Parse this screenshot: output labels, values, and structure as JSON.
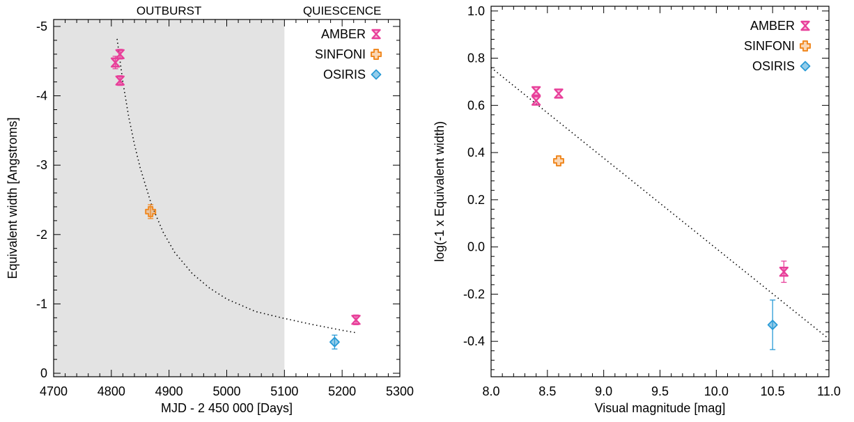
{
  "colors": {
    "amber": "#e8409a",
    "sinfoni": "#f08a24",
    "osiris": "#2a9bd6",
    "shade": "#e3e3e3",
    "fit": "#000000"
  },
  "chart_data": [
    {
      "type": "scatter",
      "xlabel": "MJD - 2 450 000 [Days]",
      "ylabel": "Equivalent width [Angstroms]",
      "xlim": [
        4700,
        5300
      ],
      "ylim": [
        0.05,
        -5.1
      ],
      "y_reversed": true,
      "xticks": [
        4700,
        4800,
        4900,
        5000,
        5100,
        5200,
        5300
      ],
      "yticks": [
        0,
        -1,
        -2,
        -3,
        -4,
        -5
      ],
      "shaded_region": {
        "x": [
          4700,
          5100
        ],
        "label": "OUTBURST"
      },
      "region_labels": [
        {
          "text": "OUTBURST",
          "x": 4900
        },
        {
          "text": "QUIESCENCE",
          "x": 5200
        }
      ],
      "legend": {
        "position": "top-right"
      },
      "series": [
        {
          "name": "AMBER",
          "marker": "hourglass",
          "color": "amber",
          "points": [
            {
              "x": 4807,
              "y": -4.48,
              "err": 0.09
            },
            {
              "x": 4815,
              "y": -4.6,
              "err": 0.07
            },
            {
              "x": 4815,
              "y": -4.22,
              "err": 0.07
            },
            {
              "x": 5224,
              "y": -0.77,
              "err": 0.07
            }
          ]
        },
        {
          "name": "SINFONI",
          "marker": "cross",
          "color": "sinfoni",
          "points": [
            {
              "x": 4868,
              "y": -2.33,
              "err": 0.1
            }
          ]
        },
        {
          "name": "OSIRIS",
          "marker": "diamond",
          "color": "osiris",
          "points": [
            {
              "x": 5187,
              "y": -0.45,
              "err": 0.1
            }
          ]
        }
      ],
      "fit_curve": [
        [
          4810,
          -4.82
        ],
        [
          4820,
          -4.2
        ],
        [
          4830,
          -3.7
        ],
        [
          4840,
          -3.3
        ],
        [
          4850,
          -2.96
        ],
        [
          4870,
          -2.42
        ],
        [
          4890,
          -2.03
        ],
        [
          4910,
          -1.74
        ],
        [
          4940,
          -1.44
        ],
        [
          4970,
          -1.23
        ],
        [
          5000,
          -1.07
        ],
        [
          5050,
          -0.89
        ],
        [
          5100,
          -0.79
        ],
        [
          5150,
          -0.7
        ],
        [
          5200,
          -0.62
        ],
        [
          5227,
          -0.58
        ]
      ]
    },
    {
      "type": "scatter",
      "xlabel": "Visual magnitude [mag]",
      "ylabel": "log(-1 x Equivalent width)",
      "xlim": [
        8.0,
        11.0
      ],
      "ylim": [
        -0.55,
        1.02
      ],
      "xticks": [
        "8.0",
        "8.5",
        "9.0",
        "9.5",
        "10.0",
        "10.5",
        "11.0"
      ],
      "yticks": [
        "-0.4",
        "-0.2",
        "0.0",
        "0.2",
        "0.4",
        "0.6",
        "0.8",
        "1.0"
      ],
      "legend": {
        "position": "top-right"
      },
      "series": [
        {
          "name": "AMBER",
          "marker": "hourglass",
          "color": "amber",
          "points": [
            {
              "x": 8.4,
              "y": 0.66,
              "err": 0.0
            },
            {
              "x": 8.4,
              "y": 0.62,
              "err": 0.0
            },
            {
              "x": 8.6,
              "y": 0.65,
              "err": 0.0
            },
            {
              "x": 10.6,
              "y": -0.105,
              "err": 0.045
            }
          ]
        },
        {
          "name": "SINFONI",
          "marker": "cross",
          "color": "sinfoni",
          "points": [
            {
              "x": 8.6,
              "y": 0.365,
              "err": 0.0
            }
          ]
        },
        {
          "name": "OSIRIS",
          "marker": "diamond",
          "color": "osiris",
          "points": [
            {
              "x": 10.5,
              "y": -0.33,
              "err": 0.105
            }
          ]
        }
      ],
      "fit_line": [
        [
          8.0,
          0.76
        ],
        [
          11.0,
          -0.39
        ]
      ]
    }
  ]
}
